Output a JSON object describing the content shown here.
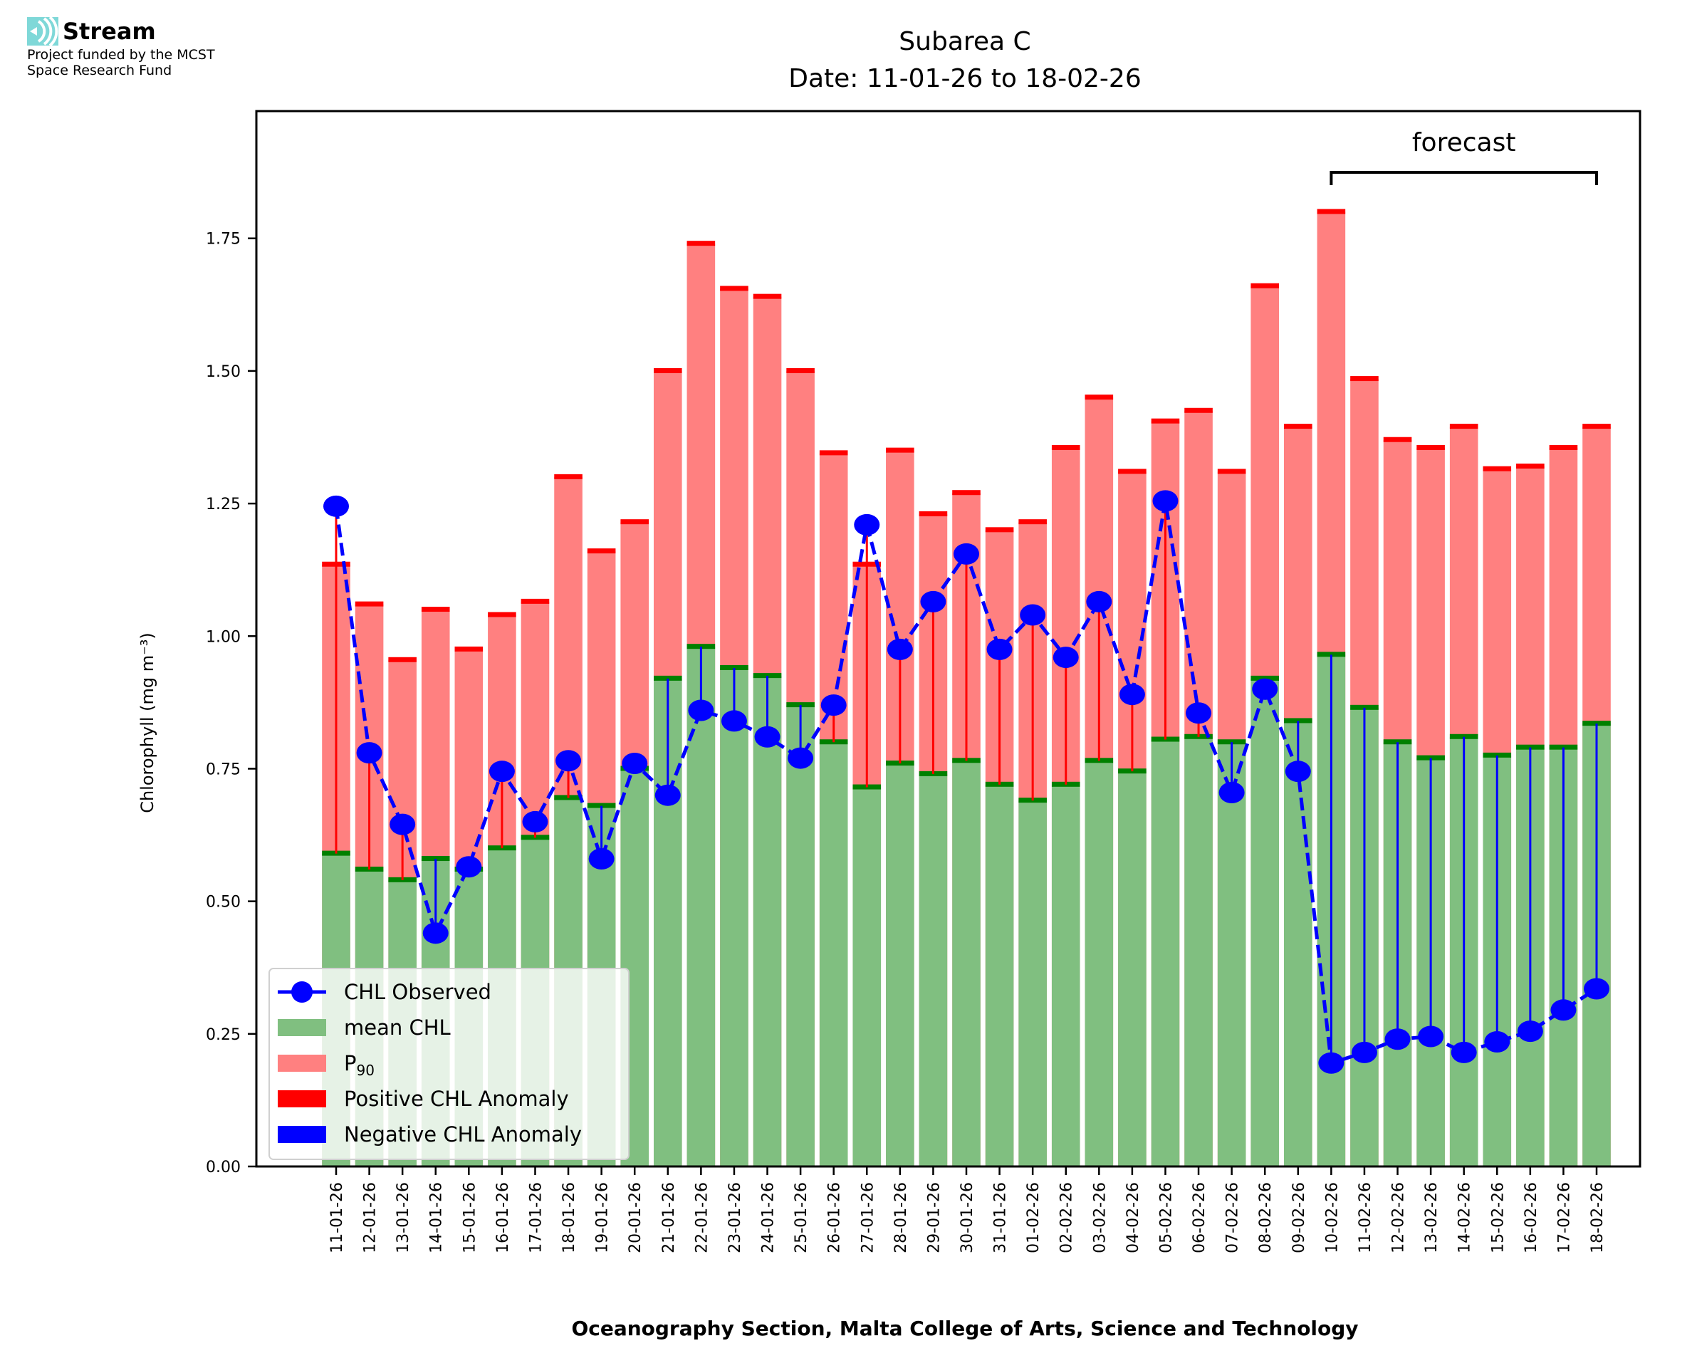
{
  "logo": {
    "name": "Stream",
    "icon": "stream-waves-icon",
    "icon_color": "#7fd8d8",
    "funding_line1": "Project funded by the MCST",
    "funding_line2": "Space Research Fund"
  },
  "colors": {
    "mean": "#80bf80",
    "mean_edge": "#008000",
    "p90": "#ff8080",
    "p90_edge": "#ff0000",
    "positive": "#ff0000",
    "negative": "#0000ff",
    "observed": "#0000ff"
  },
  "chart_data": {
    "type": "bar",
    "title": "Subarea C",
    "subtitle": "Date: 11-01-26 to 18-02-26",
    "xlabel": "Oceanography Section, Malta College of Arts, Science and Technology",
    "ylabel": "Chlorophyll (mg m⁻³)",
    "ylim": [
      0,
      1.99
    ],
    "yticks": [
      0.0,
      0.25,
      0.5,
      0.75,
      1.0,
      1.25,
      1.5,
      1.75
    ],
    "ytick_labels": [
      "0.00",
      "0.25",
      "0.50",
      "0.75",
      "1.00",
      "1.25",
      "1.50",
      "1.75"
    ],
    "grid": false,
    "legend_position": "lower-left",
    "annotation": {
      "text": "forecast",
      "start_category": "10-02-26",
      "end_category": "18-02-26"
    },
    "legend": [
      {
        "label": "CHL Observed",
        "kind": "line-marker"
      },
      {
        "label": "mean CHL",
        "kind": "mean"
      },
      {
        "label": "P",
        "sub": "90",
        "kind": "p90"
      },
      {
        "label": "Positive CHL Anomaly",
        "kind": "positive"
      },
      {
        "label": "Negative CHL Anomaly",
        "kind": "negative"
      }
    ],
    "categories": [
      "11-01-26",
      "12-01-26",
      "13-01-26",
      "14-01-26",
      "15-01-26",
      "16-01-26",
      "17-01-26",
      "18-01-26",
      "19-01-26",
      "20-01-26",
      "21-01-26",
      "22-01-26",
      "23-01-26",
      "24-01-26",
      "25-01-26",
      "26-01-26",
      "27-01-26",
      "28-01-26",
      "29-01-26",
      "30-01-26",
      "31-01-26",
      "01-02-26",
      "02-02-26",
      "03-02-26",
      "04-02-26",
      "05-02-26",
      "06-02-26",
      "07-02-26",
      "08-02-26",
      "09-02-26",
      "10-02-26",
      "11-02-26",
      "12-02-26",
      "13-02-26",
      "14-02-26",
      "15-02-26",
      "16-02-26",
      "17-02-26",
      "18-02-26"
    ],
    "series": [
      {
        "name": "P90",
        "values": [
          1.135,
          1.06,
          0.955,
          1.05,
          0.975,
          1.04,
          1.065,
          1.3,
          1.16,
          1.215,
          1.5,
          1.74,
          1.655,
          1.64,
          1.5,
          1.345,
          1.135,
          1.35,
          1.23,
          1.27,
          1.2,
          1.215,
          1.355,
          1.45,
          1.31,
          1.405,
          1.425,
          1.31,
          1.66,
          1.395,
          1.8,
          1.485,
          1.37,
          1.355,
          1.395,
          1.315,
          1.32,
          1.355,
          1.395
        ]
      },
      {
        "name": "mean CHL",
        "values": [
          0.59,
          0.56,
          0.54,
          0.58,
          0.56,
          0.6,
          0.62,
          0.695,
          0.68,
          0.75,
          0.92,
          0.98,
          0.94,
          0.925,
          0.87,
          0.8,
          0.715,
          0.76,
          0.74,
          0.765,
          0.72,
          0.69,
          0.72,
          0.765,
          0.745,
          0.805,
          0.81,
          0.8,
          0.92,
          0.84,
          0.965,
          0.865,
          0.8,
          0.77,
          0.81,
          0.775,
          0.79,
          0.79,
          0.835
        ]
      },
      {
        "name": "CHL Observed",
        "values": [
          1.245,
          0.78,
          0.645,
          0.44,
          0.565,
          0.745,
          0.65,
          0.765,
          0.58,
          0.76,
          0.7,
          0.86,
          0.84,
          0.81,
          0.77,
          0.87,
          1.21,
          0.975,
          1.065,
          1.155,
          0.975,
          1.04,
          0.96,
          1.065,
          0.89,
          1.255,
          0.855,
          0.705,
          0.9,
          0.745,
          0.195,
          0.215,
          0.24,
          0.245,
          0.215,
          0.235,
          0.255,
          0.295,
          0.335
        ]
      }
    ]
  }
}
